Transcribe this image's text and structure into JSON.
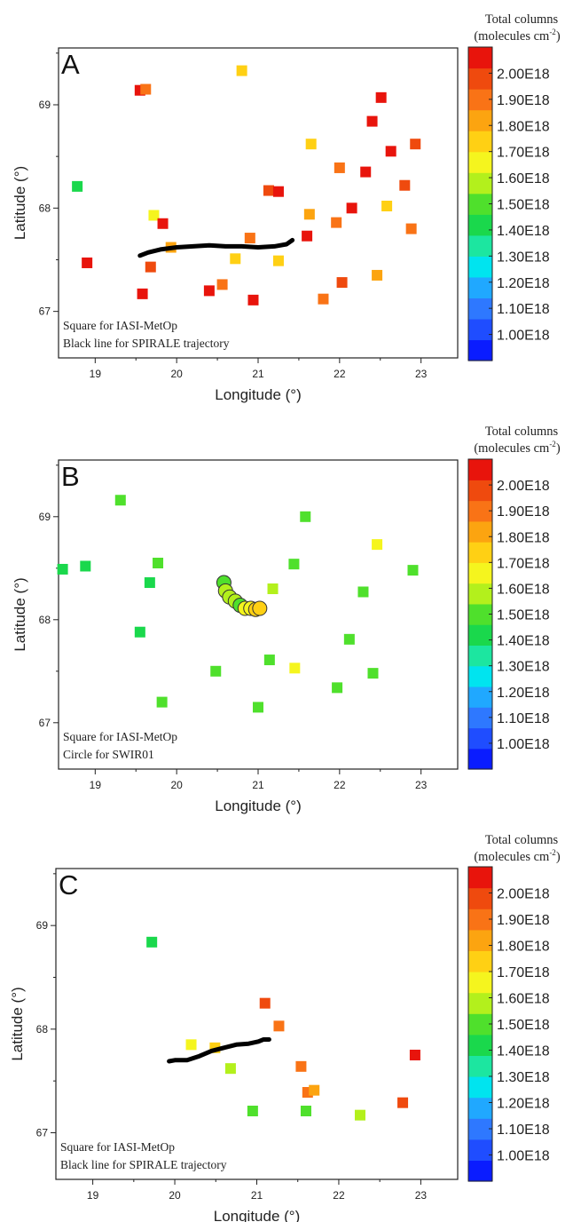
{
  "chart_data": [
    {
      "type": "scatter",
      "panel_letter": "A",
      "xlabel": "Longitude (°)",
      "ylabel": "Latitude (°)",
      "xlim": [
        18.55,
        23.45
      ],
      "ylim": [
        66.55,
        69.55
      ],
      "xticks": [
        19,
        20,
        21,
        22,
        23
      ],
      "yticks": [
        67,
        68,
        69
      ],
      "annotations": [
        "Square for IASI-MetOp",
        "Black line for SPIRALE trajectory"
      ],
      "colorbar": {
        "title_main": "Total columns",
        "title_unit": "(molecules cm",
        "title_sup": "-2",
        "title_close": ")",
        "labels": [
          "2.00E18",
          "1.90E18",
          "1.80E18",
          "1.70E18",
          "1.60E18",
          "1.50E18",
          "1.40E18",
          "1.30E18",
          "1.20E18",
          "1.10E18",
          "1.00E18"
        ]
      },
      "squares": [
        {
          "x": 19.55,
          "y": 69.14,
          "v": 2.0
        },
        {
          "x": 19.62,
          "y": 69.15,
          "v": 1.86
        },
        {
          "x": 20.8,
          "y": 69.33,
          "v": 1.7
        },
        {
          "x": 18.78,
          "y": 68.21,
          "v": 1.43
        },
        {
          "x": 18.9,
          "y": 67.47,
          "v": 2.0
        },
        {
          "x": 19.58,
          "y": 67.17,
          "v": 2.0
        },
        {
          "x": 19.72,
          "y": 67.93,
          "v": 1.62
        },
        {
          "x": 19.83,
          "y": 67.85,
          "v": 2.0
        },
        {
          "x": 19.68,
          "y": 67.43,
          "v": 1.88
        },
        {
          "x": 19.93,
          "y": 67.62,
          "v": 1.77
        },
        {
          "x": 20.4,
          "y": 67.2,
          "v": 2.0
        },
        {
          "x": 20.56,
          "y": 67.26,
          "v": 1.84
        },
        {
          "x": 20.72,
          "y": 67.51,
          "v": 1.7
        },
        {
          "x": 20.9,
          "y": 67.71,
          "v": 1.82
        },
        {
          "x": 20.94,
          "y": 67.11,
          "v": 2.0
        },
        {
          "x": 21.13,
          "y": 68.17,
          "v": 1.88
        },
        {
          "x": 21.25,
          "y": 68.16,
          "v": 2.0
        },
        {
          "x": 21.25,
          "y": 67.49,
          "v": 1.72
        },
        {
          "x": 21.6,
          "y": 67.73,
          "v": 2.0
        },
        {
          "x": 21.63,
          "y": 67.94,
          "v": 1.78
        },
        {
          "x": 21.65,
          "y": 68.62,
          "v": 1.7
        },
        {
          "x": 21.8,
          "y": 67.12,
          "v": 1.82
        },
        {
          "x": 21.96,
          "y": 67.86,
          "v": 1.82
        },
        {
          "x": 22.0,
          "y": 68.39,
          "v": 1.8
        },
        {
          "x": 22.03,
          "y": 67.28,
          "v": 1.88
        },
        {
          "x": 22.15,
          "y": 68.0,
          "v": 1.94
        },
        {
          "x": 22.32,
          "y": 68.35,
          "v": 2.0
        },
        {
          "x": 22.4,
          "y": 68.84,
          "v": 2.0
        },
        {
          "x": 22.46,
          "y": 67.35,
          "v": 1.78
        },
        {
          "x": 22.51,
          "y": 69.07,
          "v": 1.94
        },
        {
          "x": 22.58,
          "y": 68.02,
          "v": 1.7
        },
        {
          "x": 22.63,
          "y": 68.55,
          "v": 1.94
        },
        {
          "x": 22.8,
          "y": 68.22,
          "v": 1.9
        },
        {
          "x": 22.88,
          "y": 67.8,
          "v": 1.82
        },
        {
          "x": 22.93,
          "y": 68.62,
          "v": 1.9
        }
      ],
      "trajectory": [
        [
          19.55,
          67.54
        ],
        [
          19.65,
          67.57
        ],
        [
          19.8,
          67.6
        ],
        [
          20.0,
          67.62
        ],
        [
          20.2,
          67.63
        ],
        [
          20.4,
          67.64
        ],
        [
          20.6,
          67.63
        ],
        [
          20.8,
          67.63
        ],
        [
          21.0,
          67.62
        ],
        [
          21.2,
          67.63
        ],
        [
          21.35,
          67.65
        ],
        [
          21.42,
          67.69
        ]
      ],
      "circles": []
    },
    {
      "type": "scatter",
      "panel_letter": "B",
      "xlabel": "Longitude (°)",
      "ylabel": "Latitude (°)",
      "xlim": [
        18.55,
        23.45
      ],
      "ylim": [
        66.55,
        69.55
      ],
      "xticks": [
        19,
        20,
        21,
        22,
        23
      ],
      "yticks": [
        67,
        68,
        69
      ],
      "annotations": [
        "Square for IASI-MetOp",
        "Circle for SWIR01"
      ],
      "colorbar": {
        "title_main": "Total columns",
        "title_unit": "(molecules cm",
        "title_sup": "-2",
        "title_close": ")",
        "labels": [
          "2.00E18",
          "1.90E18",
          "1.80E18",
          "1.70E18",
          "1.60E18",
          "1.50E18",
          "1.40E18",
          "1.30E18",
          "1.20E18",
          "1.10E18",
          "1.00E18"
        ]
      },
      "squares": [
        {
          "x": 18.6,
          "y": 68.49,
          "v": 1.45
        },
        {
          "x": 18.88,
          "y": 68.52,
          "v": 1.45
        },
        {
          "x": 19.31,
          "y": 69.16,
          "v": 1.52
        },
        {
          "x": 19.55,
          "y": 67.88,
          "v": 1.43
        },
        {
          "x": 19.67,
          "y": 68.36,
          "v": 1.45
        },
        {
          "x": 19.77,
          "y": 68.55,
          "v": 1.49
        },
        {
          "x": 19.82,
          "y": 67.2,
          "v": 1.52
        },
        {
          "x": 20.48,
          "y": 67.5,
          "v": 1.49
        },
        {
          "x": 21.0,
          "y": 67.15,
          "v": 1.5
        },
        {
          "x": 21.14,
          "y": 67.61,
          "v": 1.5
        },
        {
          "x": 21.18,
          "y": 68.3,
          "v": 1.57
        },
        {
          "x": 21.44,
          "y": 68.54,
          "v": 1.52
        },
        {
          "x": 21.45,
          "y": 67.53,
          "v": 1.62
        },
        {
          "x": 21.58,
          "y": 69.0,
          "v": 1.5
        },
        {
          "x": 21.97,
          "y": 67.34,
          "v": 1.52
        },
        {
          "x": 22.12,
          "y": 67.81,
          "v": 1.5
        },
        {
          "x": 22.29,
          "y": 68.27,
          "v": 1.52
        },
        {
          "x": 22.41,
          "y": 67.48,
          "v": 1.5
        },
        {
          "x": 22.46,
          "y": 68.73,
          "v": 1.62
        },
        {
          "x": 22.9,
          "y": 68.48,
          "v": 1.52
        }
      ],
      "trajectory": [],
      "circles": [
        {
          "x": 20.58,
          "y": 68.36,
          "v": 1.5
        },
        {
          "x": 20.6,
          "y": 68.28,
          "v": 1.55
        },
        {
          "x": 20.65,
          "y": 68.22,
          "v": 1.55
        },
        {
          "x": 20.72,
          "y": 68.18,
          "v": 1.55
        },
        {
          "x": 20.78,
          "y": 68.14,
          "v": 1.52
        },
        {
          "x": 20.84,
          "y": 68.11,
          "v": 1.6
        },
        {
          "x": 20.91,
          "y": 68.11,
          "v": 1.63
        },
        {
          "x": 20.97,
          "y": 68.1,
          "v": 1.67
        },
        {
          "x": 21.02,
          "y": 68.11,
          "v": 1.68
        }
      ]
    },
    {
      "type": "scatter",
      "panel_letter": "C",
      "xlabel": "Longitude (°)",
      "ylabel": "Latitude (°)",
      "xlim": [
        18.55,
        23.45
      ],
      "ylim": [
        66.55,
        69.55
      ],
      "xticks": [
        19,
        20,
        21,
        22,
        23
      ],
      "yticks": [
        67,
        68,
        69
      ],
      "annotations": [
        "Square for IASI-MetOp",
        "Black line for SPIRALE trajectory"
      ],
      "colorbar": {
        "title_main": "Total columns",
        "title_unit": "(molecules cm",
        "title_sup": "-2",
        "title_close": ")",
        "labels": [
          "2.00E18",
          "1.90E18",
          "1.80E18",
          "1.70E18",
          "1.60E18",
          "1.50E18",
          "1.40E18",
          "1.30E18",
          "1.20E18",
          "1.10E18",
          "1.00E18"
        ]
      },
      "squares": [
        {
          "x": 19.72,
          "y": 68.84,
          "v": 1.43
        },
        {
          "x": 20.2,
          "y": 67.85,
          "v": 1.6
        },
        {
          "x": 20.49,
          "y": 67.82,
          "v": 1.72
        },
        {
          "x": 20.68,
          "y": 67.62,
          "v": 1.57
        },
        {
          "x": 20.95,
          "y": 67.21,
          "v": 1.5
        },
        {
          "x": 21.1,
          "y": 68.25,
          "v": 1.92
        },
        {
          "x": 21.27,
          "y": 68.03,
          "v": 1.8
        },
        {
          "x": 21.54,
          "y": 67.64,
          "v": 1.8
        },
        {
          "x": 21.6,
          "y": 67.21,
          "v": 1.5
        },
        {
          "x": 21.62,
          "y": 67.39,
          "v": 1.82
        },
        {
          "x": 21.7,
          "y": 67.41,
          "v": 1.74
        },
        {
          "x": 22.26,
          "y": 67.17,
          "v": 1.57
        },
        {
          "x": 22.78,
          "y": 67.29,
          "v": 1.9
        },
        {
          "x": 22.93,
          "y": 67.75,
          "v": 2.0
        }
      ],
      "trajectory": [
        [
          19.93,
          67.69
        ],
        [
          20.0,
          67.7
        ],
        [
          20.15,
          67.7
        ],
        [
          20.3,
          67.74
        ],
        [
          20.45,
          67.79
        ],
        [
          20.6,
          67.82
        ],
        [
          20.75,
          67.85
        ],
        [
          20.9,
          67.86
        ],
        [
          21.02,
          67.88
        ],
        [
          21.08,
          67.9
        ],
        [
          21.15,
          67.9
        ]
      ],
      "circles": []
    }
  ]
}
